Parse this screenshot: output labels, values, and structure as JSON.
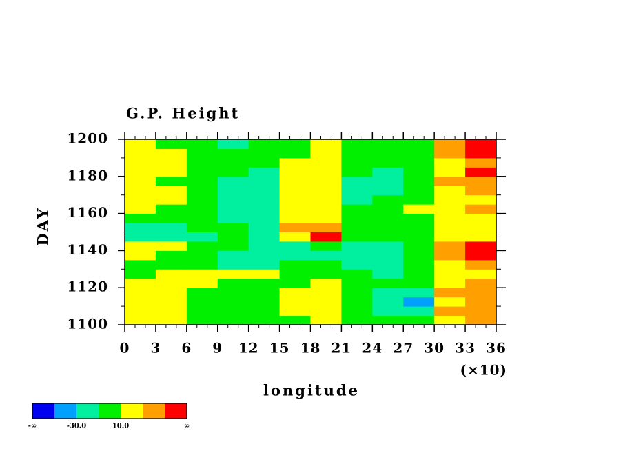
{
  "chart_data": {
    "type": "contour",
    "title": "G.P. Height",
    "xlabel": "longitude",
    "ylabel": "DAY",
    "x_multiplier": "(×10)",
    "xlim": [
      0,
      36
    ],
    "xticks": [
      0,
      3,
      6,
      9,
      12,
      15,
      18,
      21,
      24,
      27,
      30,
      33,
      36
    ],
    "ylim": [
      1100,
      1200
    ],
    "yticks": [
      1100,
      1120,
      1140,
      1160,
      1180,
      1200
    ],
    "x": [
      1.5,
      4.5,
      7.5,
      10.5,
      13.5,
      16.5,
      19.5,
      22.5,
      25.5,
      28.5,
      31.5,
      34.5
    ],
    "y": [
      1102.5,
      1107.5,
      1112.5,
      1117.5,
      1122.5,
      1127.5,
      1132.5,
      1137.5,
      1142.5,
      1147.5,
      1152.5,
      1157.5,
      1162.5,
      1167.5,
      1172.5,
      1177.5,
      1182.5,
      1187.5,
      1192.5,
      1197.5
    ],
    "z": [
      [
        15,
        12,
        5,
        0,
        -5,
        5,
        12,
        8,
        -5,
        -10,
        20,
        35
      ],
      [
        12,
        15,
        5,
        -2,
        0,
        10,
        18,
        5,
        -15,
        -25,
        30,
        40
      ],
      [
        20,
        10,
        0,
        -5,
        5,
        15,
        20,
        0,
        -25,
        -35,
        25,
        45
      ],
      [
        15,
        20,
        8,
        0,
        5,
        12,
        25,
        5,
        -15,
        -20,
        30,
        40
      ],
      [
        10,
        15,
        12,
        5,
        0,
        8,
        15,
        0,
        -10,
        -5,
        20,
        35
      ],
      [
        5,
        10,
        15,
        20,
        10,
        5,
        5,
        -5,
        -15,
        0,
        15,
        25
      ],
      [
        0,
        5,
        0,
        -15,
        -25,
        -10,
        -5,
        -15,
        -20,
        -10,
        20,
        40
      ],
      [
        10,
        0,
        -5,
        -15,
        -30,
        -20,
        -15,
        -25,
        -20,
        -5,
        35,
        55
      ],
      [
        25,
        15,
        5,
        -10,
        -20,
        -15,
        -10,
        -25,
        -15,
        -5,
        40,
        50
      ],
      [
        -20,
        -30,
        -15,
        -10,
        -20,
        25,
        50,
        -5,
        -10,
        -5,
        15,
        20
      ],
      [
        -25,
        -20,
        -10,
        -5,
        -15,
        30,
        45,
        5,
        -5,
        -10,
        10,
        15
      ],
      [
        5,
        0,
        -10,
        -20,
        -15,
        10,
        25,
        0,
        5,
        -5,
        15,
        25
      ],
      [
        10,
        5,
        -5,
        -25,
        -30,
        15,
        20,
        -10,
        -5,
        10,
        25,
        30
      ],
      [
        15,
        10,
        -5,
        -20,
        -25,
        20,
        15,
        -15,
        -10,
        5,
        20,
        25
      ],
      [
        20,
        10,
        -10,
        -20,
        -15,
        25,
        20,
        -20,
        -15,
        0,
        25,
        35
      ],
      [
        10,
        5,
        -5,
        -15,
        -20,
        20,
        15,
        -20,
        -25,
        -10,
        30,
        45
      ],
      [
        15,
        15,
        5,
        -10,
        -15,
        15,
        25,
        -10,
        -20,
        -5,
        25,
        55
      ],
      [
        20,
        10,
        0,
        -5,
        -10,
        10,
        20,
        -5,
        -10,
        0,
        20,
        35
      ],
      [
        15,
        12,
        5,
        0,
        -5,
        5,
        25,
        0,
        -5,
        5,
        30,
        50
      ],
      [
        10,
        5,
        0,
        -15,
        -10,
        5,
        10,
        0,
        -5,
        5,
        35,
        55
      ]
    ],
    "colorbar": {
      "bounds": [
        -50,
        -30,
        -10,
        10,
        30,
        50
      ],
      "colors": [
        "#0000f0",
        "#00a0ff",
        "#00f0a0",
        "#00f000",
        "#ffff00",
        "#ffa000",
        "#ff0000"
      ],
      "ticks": [
        {
          "value": -30,
          "label": "-30.0"
        },
        {
          "value": 10,
          "label": "10.0"
        }
      ],
      "ends": [
        "-∞",
        "∞"
      ]
    }
  }
}
